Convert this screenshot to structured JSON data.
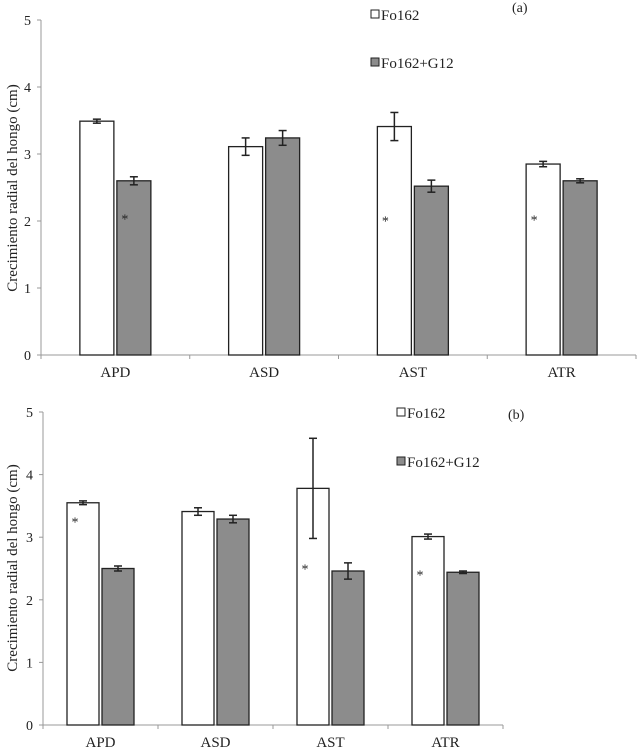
{
  "chart_data": [
    {
      "type": "bar",
      "panel_label": "(a)",
      "ylabel": "Crecimiento radial del hongo (cm)",
      "xlabel": "",
      "ylim": [
        0,
        5
      ],
      "yticks": [
        "0",
        "1",
        "2",
        "3",
        "4",
        "5"
      ],
      "categories": [
        "APD",
        "ASD",
        "AST",
        "ATR"
      ],
      "grid": false,
      "legend_placement": "top-right",
      "series": [
        {
          "name": "Fo162",
          "color": "#ffffff",
          "values": [
            3.49,
            3.11,
            3.41,
            2.85
          ],
          "errors": [
            0.03,
            0.13,
            0.21,
            0.04
          ]
        },
        {
          "name": "Fo162+G12",
          "color": "#8c8c8c",
          "values": [
            2.6,
            3.24,
            2.52,
            2.6
          ],
          "errors": [
            0.06,
            0.11,
            0.09,
            0.03
          ]
        }
      ],
      "annotations": [
        {
          "text": "*",
          "category": "APD",
          "series": "Fo162+G12",
          "y": 2.08
        },
        {
          "text": "*",
          "category": "AST",
          "series": "Fo162",
          "y": 2.05
        },
        {
          "text": "*",
          "category": "ATR",
          "series": "Fo162",
          "y": 2.07
        }
      ]
    },
    {
      "type": "bar",
      "panel_label": "(b)",
      "ylabel": "Crecimiento radial del hongo (cm)",
      "xlabel": "",
      "ylim": [
        0,
        5
      ],
      "yticks": [
        "0",
        "1",
        "2",
        "3",
        "4",
        "5"
      ],
      "categories": [
        "APD",
        "ASD",
        "AST",
        "ATR"
      ],
      "grid": false,
      "legend_placement": "top-right",
      "series": [
        {
          "name": "Fo162",
          "color": "#ffffff",
          "values": [
            3.55,
            3.41,
            3.78,
            3.01
          ],
          "errors": [
            0.03,
            0.06,
            0.8,
            0.04
          ]
        },
        {
          "name": "Fo162+G12",
          "color": "#8c8c8c",
          "values": [
            2.5,
            3.29,
            2.46,
            2.44
          ],
          "errors": [
            0.04,
            0.06,
            0.13,
            0.02
          ]
        }
      ],
      "annotations": [
        {
          "text": "*",
          "category": "APD",
          "series": "Fo162",
          "y": 3.3
        },
        {
          "text": "*",
          "category": "AST",
          "series": "Fo162",
          "y": 2.55
        },
        {
          "text": "*",
          "category": "ATR",
          "series": "Fo162",
          "y": 2.45
        }
      ]
    }
  ]
}
